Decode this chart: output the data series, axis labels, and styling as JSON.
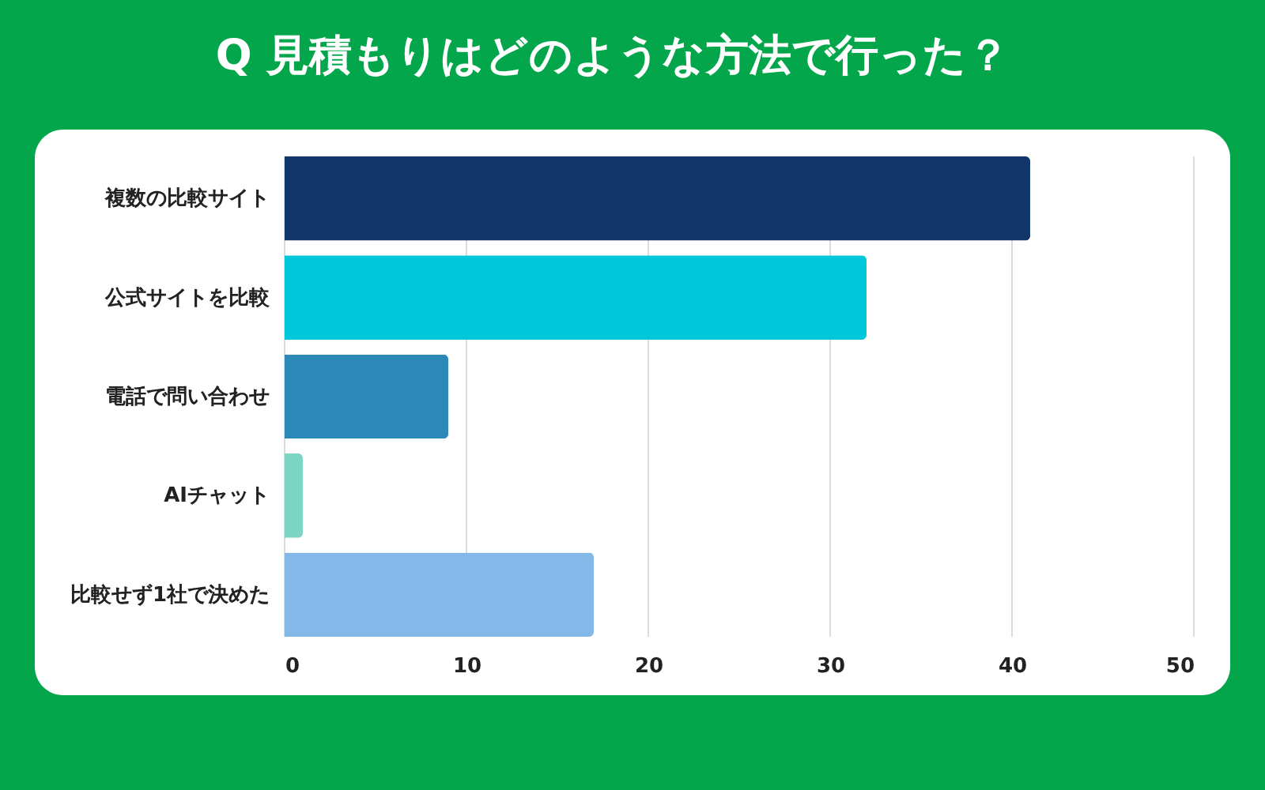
{
  "chart_data": {
    "type": "bar",
    "orientation": "horizontal",
    "title": "Q 見積もりはどのような方法で行った？",
    "categories": [
      "複数の比較サイト",
      "公式サイトを比較",
      "電話で問い合わせ",
      "AIチャット",
      "比較せず1社で決めた"
    ],
    "values": [
      41,
      32,
      9,
      1,
      17
    ],
    "colors": [
      "#12356a",
      "#00c8da",
      "#2c88b6",
      "#7dd5c3",
      "#84b8e8"
    ],
    "xlim": [
      0,
      50
    ],
    "xticks": [
      0,
      10,
      20,
      30,
      40,
      50
    ],
    "grid": "x"
  }
}
